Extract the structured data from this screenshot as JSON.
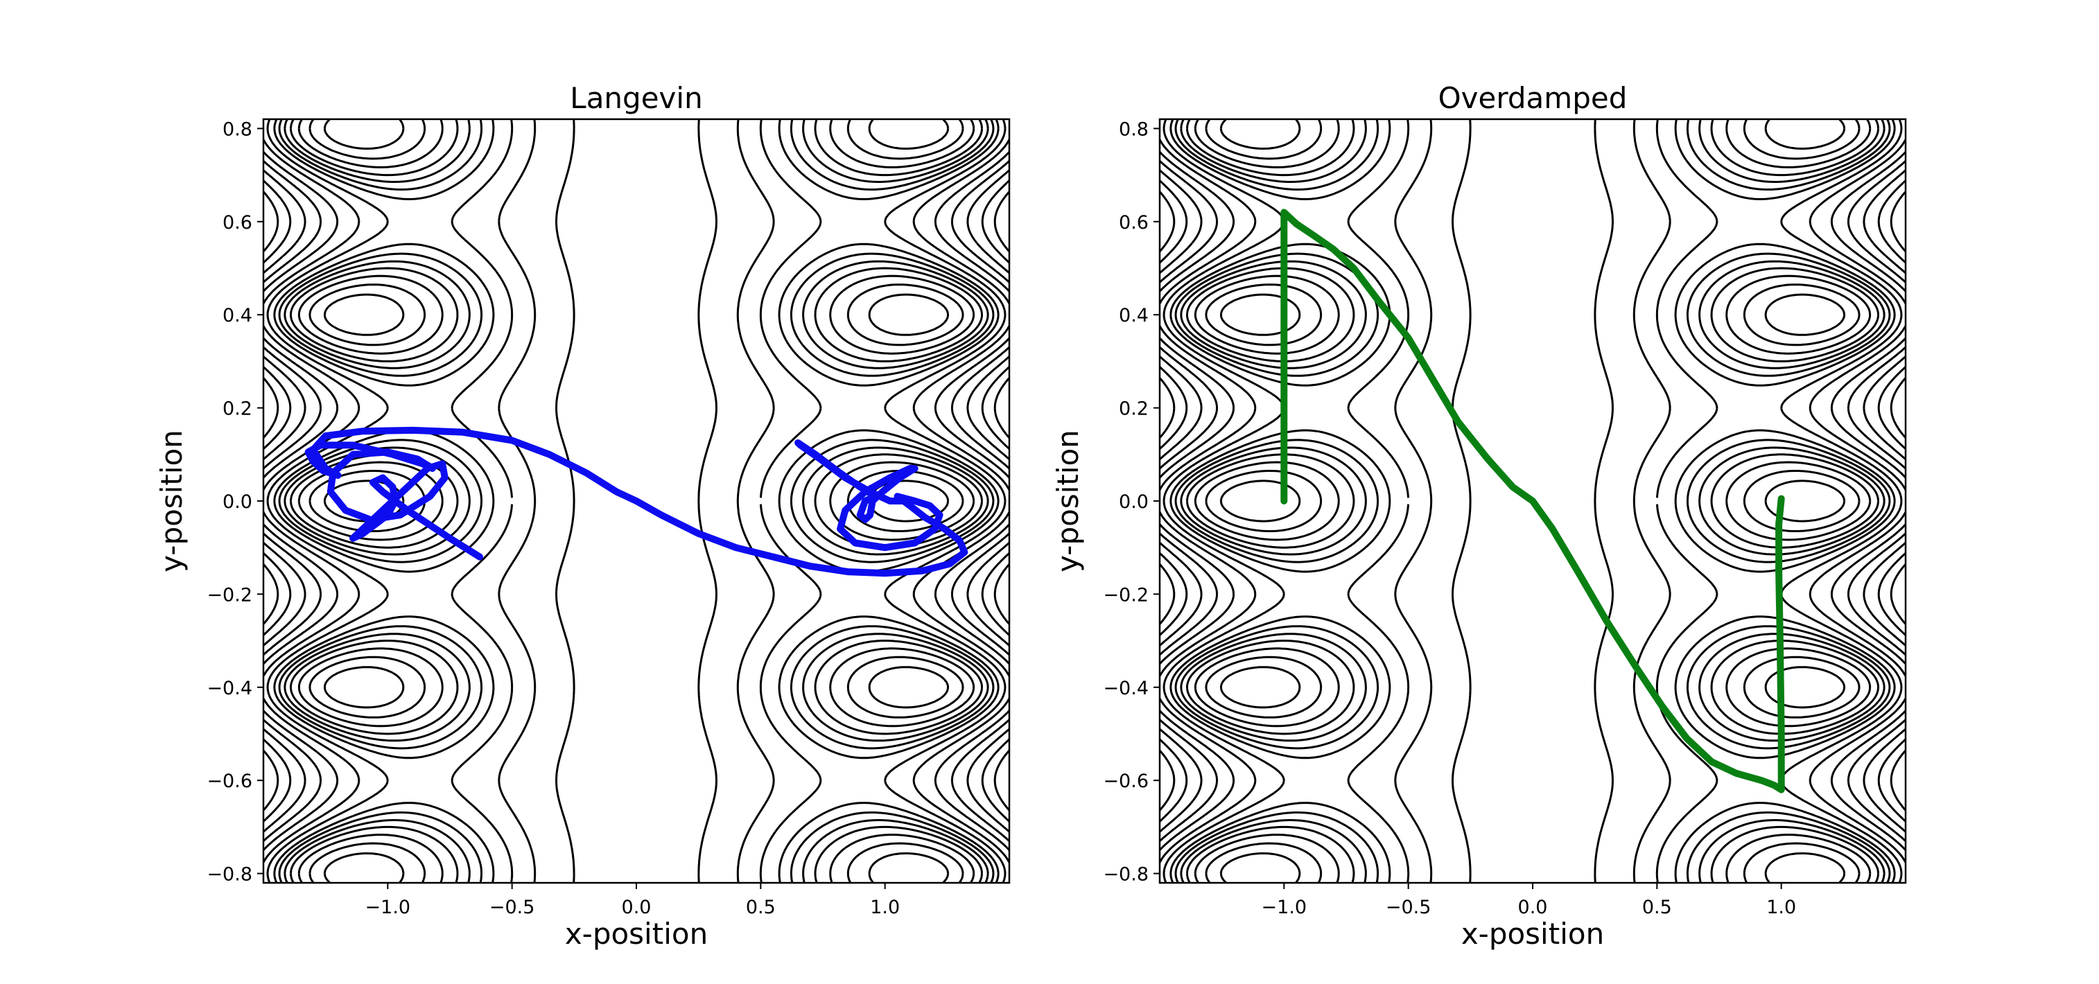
{
  "chart_data": [
    {
      "type": "line",
      "title": "Langevin",
      "xlabel": "x-position",
      "ylabel": "y-position",
      "xlim": [
        -1.5,
        1.5
      ],
      "ylim": [
        -0.82,
        0.82
      ],
      "x_ticks": [
        -1.0,
        -0.5,
        0.0,
        0.5,
        1.0
      ],
      "x_tick_labels": [
        "−1.0",
        "−0.5",
        "0.0",
        "0.5",
        "1.0"
      ],
      "y_ticks": [
        0.8,
        0.6,
        0.4,
        0.2,
        0.0,
        -0.2,
        -0.4,
        -0.6,
        -0.8
      ],
      "y_tick_labels": [
        "0.8",
        "0.6",
        "0.4",
        "0.2",
        "0.0",
        "−0.2",
        "−0.4",
        "−0.6",
        "−0.8"
      ],
      "grid": false,
      "legend": "none",
      "background": "contour lines of the potential (black)",
      "series": [
        {
          "color": "#0d0df0",
          "points": [
            [
              -0.63,
              -0.12
            ],
            [
              -0.75,
              -0.08
            ],
            [
              -0.92,
              -0.02
            ],
            [
              -1.02,
              0.02
            ],
            [
              -1.06,
              0.04
            ],
            [
              -1.02,
              0.05
            ],
            [
              -0.98,
              0.03
            ],
            [
              -0.97,
              0.0
            ],
            [
              -1.0,
              -0.03
            ],
            [
              -1.05,
              -0.05
            ],
            [
              -1.1,
              -0.07
            ],
            [
              -1.14,
              -0.08
            ],
            [
              -1.1,
              -0.06
            ],
            [
              -1.0,
              -0.01
            ],
            [
              -0.92,
              0.03
            ],
            [
              -0.84,
              0.07
            ],
            [
              -0.78,
              0.08
            ],
            [
              -0.77,
              0.05
            ],
            [
              -0.83,
              0.01
            ],
            [
              -0.95,
              -0.03
            ],
            [
              -1.07,
              -0.04
            ],
            [
              -1.17,
              -0.02
            ],
            [
              -1.23,
              0.02
            ],
            [
              -1.22,
              0.06
            ],
            [
              -1.14,
              0.1
            ],
            [
              -1.0,
              0.105
            ],
            [
              -0.88,
              0.09
            ],
            [
              -0.82,
              0.07
            ],
            [
              -0.86,
              0.08
            ],
            [
              -0.98,
              0.1
            ],
            [
              -1.14,
              0.12
            ],
            [
              -1.27,
              0.12
            ],
            [
              -1.32,
              0.105
            ],
            [
              -1.3,
              0.085
            ],
            [
              -1.26,
              0.065
            ],
            [
              -1.2,
              0.055
            ],
            [
              -1.25,
              0.07
            ],
            [
              -1.3,
              0.11
            ],
            [
              -1.25,
              0.14
            ],
            [
              -1.1,
              0.15
            ],
            [
              -0.9,
              0.152
            ],
            [
              -0.7,
              0.148
            ],
            [
              -0.5,
              0.13
            ],
            [
              -0.35,
              0.1
            ],
            [
              -0.2,
              0.06
            ],
            [
              -0.08,
              0.02
            ],
            [
              0.0,
              0.0
            ],
            [
              0.1,
              -0.03
            ],
            [
              0.25,
              -0.07
            ],
            [
              0.4,
              -0.1
            ],
            [
              0.55,
              -0.12
            ],
            [
              0.7,
              -0.14
            ],
            [
              0.85,
              -0.152
            ],
            [
              1.0,
              -0.155
            ],
            [
              1.15,
              -0.15
            ],
            [
              1.26,
              -0.135
            ],
            [
              1.32,
              -0.11
            ],
            [
              1.3,
              -0.085
            ],
            [
              1.24,
              -0.06
            ],
            [
              1.16,
              -0.035
            ],
            [
              1.1,
              -0.01
            ],
            [
              1.05,
              0.01
            ],
            [
              1.12,
              0.0
            ],
            [
              1.18,
              -0.01
            ],
            [
              1.22,
              -0.03
            ],
            [
              1.2,
              -0.06
            ],
            [
              1.12,
              -0.09
            ],
            [
              1.0,
              -0.1
            ],
            [
              0.88,
              -0.09
            ],
            [
              0.82,
              -0.06
            ],
            [
              0.84,
              -0.02
            ],
            [
              0.92,
              0.02
            ],
            [
              1.02,
              0.05
            ],
            [
              1.1,
              0.07
            ],
            [
              1.12,
              0.07
            ],
            [
              1.06,
              0.05
            ],
            [
              0.99,
              0.02
            ],
            [
              0.95,
              0.0
            ],
            [
              0.94,
              -0.03
            ],
            [
              0.92,
              -0.04
            ],
            [
              0.9,
              -0.03
            ],
            [
              0.92,
              0.0
            ],
            [
              0.96,
              0.01
            ],
            [
              0.9,
              0.03
            ],
            [
              0.82,
              0.06
            ],
            [
              0.72,
              0.1
            ],
            [
              0.65,
              0.125
            ],
            [
              0.66,
              0.12
            ],
            [
              0.74,
              0.09
            ],
            [
              0.84,
              0.05
            ],
            [
              0.94,
              0.02
            ],
            [
              1.02,
              0.0
            ],
            [
              1.07,
              0.0
            ]
          ]
        }
      ]
    },
    {
      "type": "line",
      "title": "Overdamped",
      "xlabel": "x-position",
      "ylabel": "y-position",
      "xlim": [
        -1.5,
        1.5
      ],
      "ylim": [
        -0.82,
        0.82
      ],
      "x_ticks": [
        -1.0,
        -0.5,
        0.0,
        0.5,
        1.0
      ],
      "x_tick_labels": [
        "−1.0",
        "−0.5",
        "0.0",
        "0.5",
        "1.0"
      ],
      "y_ticks": [
        0.8,
        0.6,
        0.4,
        0.2,
        0.0,
        -0.2,
        -0.4,
        -0.6,
        -0.8
      ],
      "y_tick_labels": [
        "0.8",
        "0.6",
        "0.4",
        "0.2",
        "0.0",
        "−0.2",
        "−0.4",
        "−0.6",
        "−0.8"
      ],
      "grid": false,
      "legend": "none",
      "background": "contour lines of the potential (black)",
      "series": [
        {
          "color": "#0a8013",
          "points": [
            [
              -1.0,
              0.0
            ],
            [
              -1.0,
              0.15
            ],
            [
              -1.0,
              0.35
            ],
            [
              -1.0,
              0.5
            ],
            [
              -1.0,
              0.62
            ],
            [
              -0.98,
              0.61
            ],
            [
              -0.95,
              0.595
            ],
            [
              -0.88,
              0.57
            ],
            [
              -0.8,
              0.54
            ],
            [
              -0.72,
              0.5
            ],
            [
              -0.62,
              0.43
            ],
            [
              -0.5,
              0.35
            ],
            [
              -0.4,
              0.26
            ],
            [
              -0.3,
              0.17
            ],
            [
              -0.18,
              0.09
            ],
            [
              -0.08,
              0.03
            ],
            [
              0.0,
              0.0
            ],
            [
              0.08,
              -0.06
            ],
            [
              0.18,
              -0.15
            ],
            [
              0.3,
              -0.26
            ],
            [
              0.42,
              -0.36
            ],
            [
              0.52,
              -0.44
            ],
            [
              0.62,
              -0.51
            ],
            [
              0.72,
              -0.56
            ],
            [
              0.82,
              -0.585
            ],
            [
              0.92,
              -0.6
            ],
            [
              0.97,
              -0.61
            ],
            [
              1.0,
              -0.62
            ],
            [
              1.0,
              -0.5
            ],
            [
              0.995,
              -0.3
            ],
            [
              0.99,
              -0.15
            ],
            [
              0.99,
              -0.05
            ],
            [
              1.0,
              0.005
            ]
          ]
        }
      ]
    }
  ]
}
